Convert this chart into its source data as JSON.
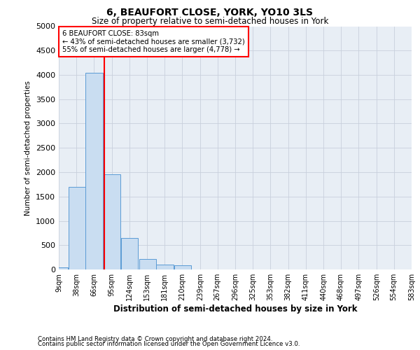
{
  "title": "6, BEAUFORT CLOSE, YORK, YO10 3LS",
  "subtitle": "Size of property relative to semi-detached houses in York",
  "xlabel": "Distribution of semi-detached houses by size in York",
  "ylabel": "Number of semi-detached properties",
  "footnote1": "Contains HM Land Registry data © Crown copyright and database right 2024.",
  "footnote2": "Contains public sector information licensed under the Open Government Licence v3.0.",
  "annotation_title": "6 BEAUFORT CLOSE: 83sqm",
  "annotation_line1": "← 43% of semi-detached houses are smaller (3,732)",
  "annotation_line2": "55% of semi-detached houses are larger (4,778) →",
  "property_size": 83,
  "bins": [
    9,
    38,
    66,
    95,
    124,
    153,
    181,
    210,
    239,
    267,
    296,
    325,
    353,
    382,
    411,
    440,
    468,
    497,
    526,
    554,
    583
  ],
  "bin_labels": [
    "9sqm",
    "38sqm",
    "66sqm",
    "95sqm",
    "124sqm",
    "153sqm",
    "181sqm",
    "210sqm",
    "239sqm",
    "267sqm",
    "296sqm",
    "325sqm",
    "353sqm",
    "382sqm",
    "411sqm",
    "440sqm",
    "468sqm",
    "497sqm",
    "526sqm",
    "554sqm",
    "583sqm"
  ],
  "counts": [
    50,
    1700,
    4050,
    1950,
    650,
    210,
    100,
    80,
    0,
    0,
    0,
    0,
    0,
    0,
    0,
    0,
    0,
    0,
    0,
    0
  ],
  "bar_color": "#c9ddf1",
  "bar_edge_color": "#5b9bd5",
  "vline_color": "red",
  "annotation_box_color": "red",
  "annotation_fill": "white",
  "ylim": [
    0,
    5000
  ],
  "yticks": [
    0,
    500,
    1000,
    1500,
    2000,
    2500,
    3000,
    3500,
    4000,
    4500,
    5000
  ],
  "grid_color": "#c8d0dc",
  "background_color": "#e8eef5"
}
